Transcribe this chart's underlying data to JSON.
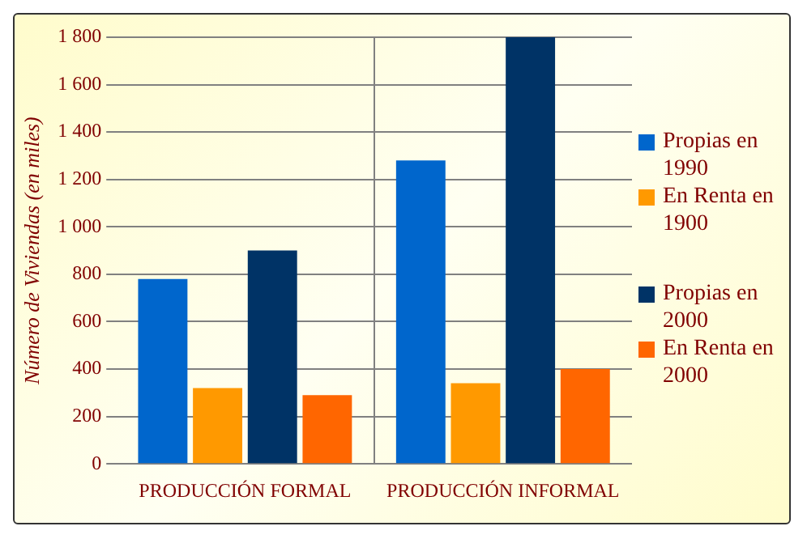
{
  "chart_data": {
    "type": "bar",
    "ylabel": "Número de Viviendas (en miles)",
    "categories": [
      "PRODUCCIÓN FORMAL",
      "PRODUCCIÓN INFORMAL"
    ],
    "series": [
      {
        "name": "Propias en 1990",
        "color": "#0066cc",
        "values": [
          780,
          1280
        ]
      },
      {
        "name": "En Renta en 1900",
        "color": "#ff9900",
        "values": [
          320,
          340
        ]
      },
      {
        "name": "Propias en 2000",
        "color": "#003366",
        "values": [
          900,
          1800
        ]
      },
      {
        "name": "En Renta en 2000",
        "color": "#ff6600",
        "values": [
          290,
          400
        ]
      }
    ],
    "ylim": [
      0,
      1800
    ],
    "yticks": [
      0,
      200,
      400,
      600,
      800,
      {
        "value": 1000,
        "label": "1 000"
      },
      {
        "value": 1200,
        "label": "1 200"
      },
      {
        "value": 1400,
        "label": "1 400"
      },
      {
        "value": 1600,
        "label": "1 600"
      },
      {
        "value": 1800,
        "label": "1 800"
      }
    ],
    "grid": "y",
    "legend": "right"
  }
}
